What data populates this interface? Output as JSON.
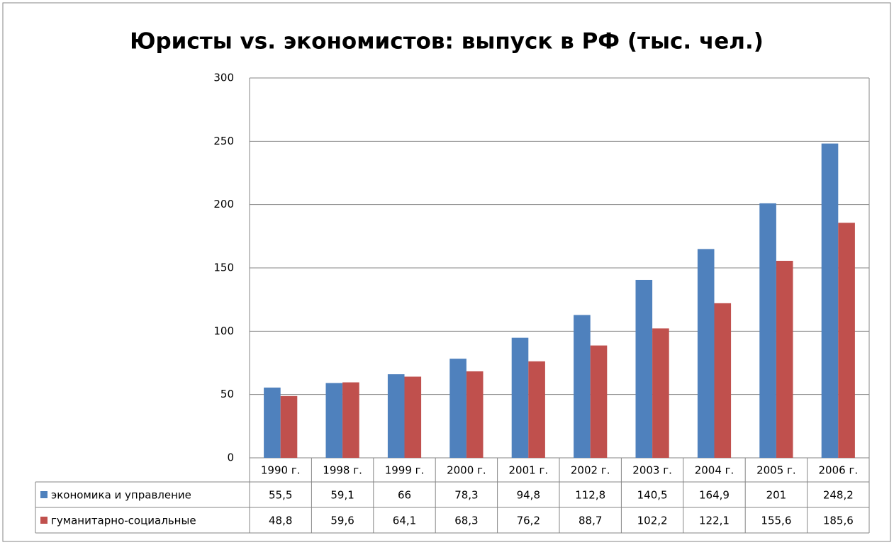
{
  "chart_data": {
    "type": "bar",
    "title": "Юристы vs. экономистов: выпуск в РФ (тыс. чел.)",
    "categories": [
      "1990 г.",
      "1998 г.",
      "1999 г.",
      "2000 г.",
      "2001 г.",
      "2002 г.",
      "2003 г.",
      "2004 г.",
      "2005 г.",
      "2006 г."
    ],
    "series": [
      {
        "name": "экономика и управление",
        "color": "#4f81bd",
        "values": [
          55.5,
          59.1,
          66,
          78.3,
          94.8,
          112.8,
          140.5,
          164.9,
          201,
          248.2
        ],
        "value_labels": [
          "55,5",
          "59,1",
          "66",
          "78,3",
          "94,8",
          "112,8",
          "140,5",
          "164,9",
          "201",
          "248,2"
        ]
      },
      {
        "name": "гуманитарно-социальные",
        "color": "#c0504d",
        "values": [
          48.8,
          59.6,
          64.1,
          68.3,
          76.2,
          88.7,
          102.2,
          122.1,
          155.6,
          185.6
        ],
        "value_labels": [
          "48,8",
          "59,6",
          "64,1",
          "68,3",
          "76,2",
          "88,7",
          "102,2",
          "122,1",
          "155,6",
          "185,6"
        ]
      }
    ],
    "ylim": [
      0,
      300
    ],
    "yticks": [
      0,
      50,
      100,
      150,
      200,
      250,
      300
    ],
    "grid": true
  }
}
